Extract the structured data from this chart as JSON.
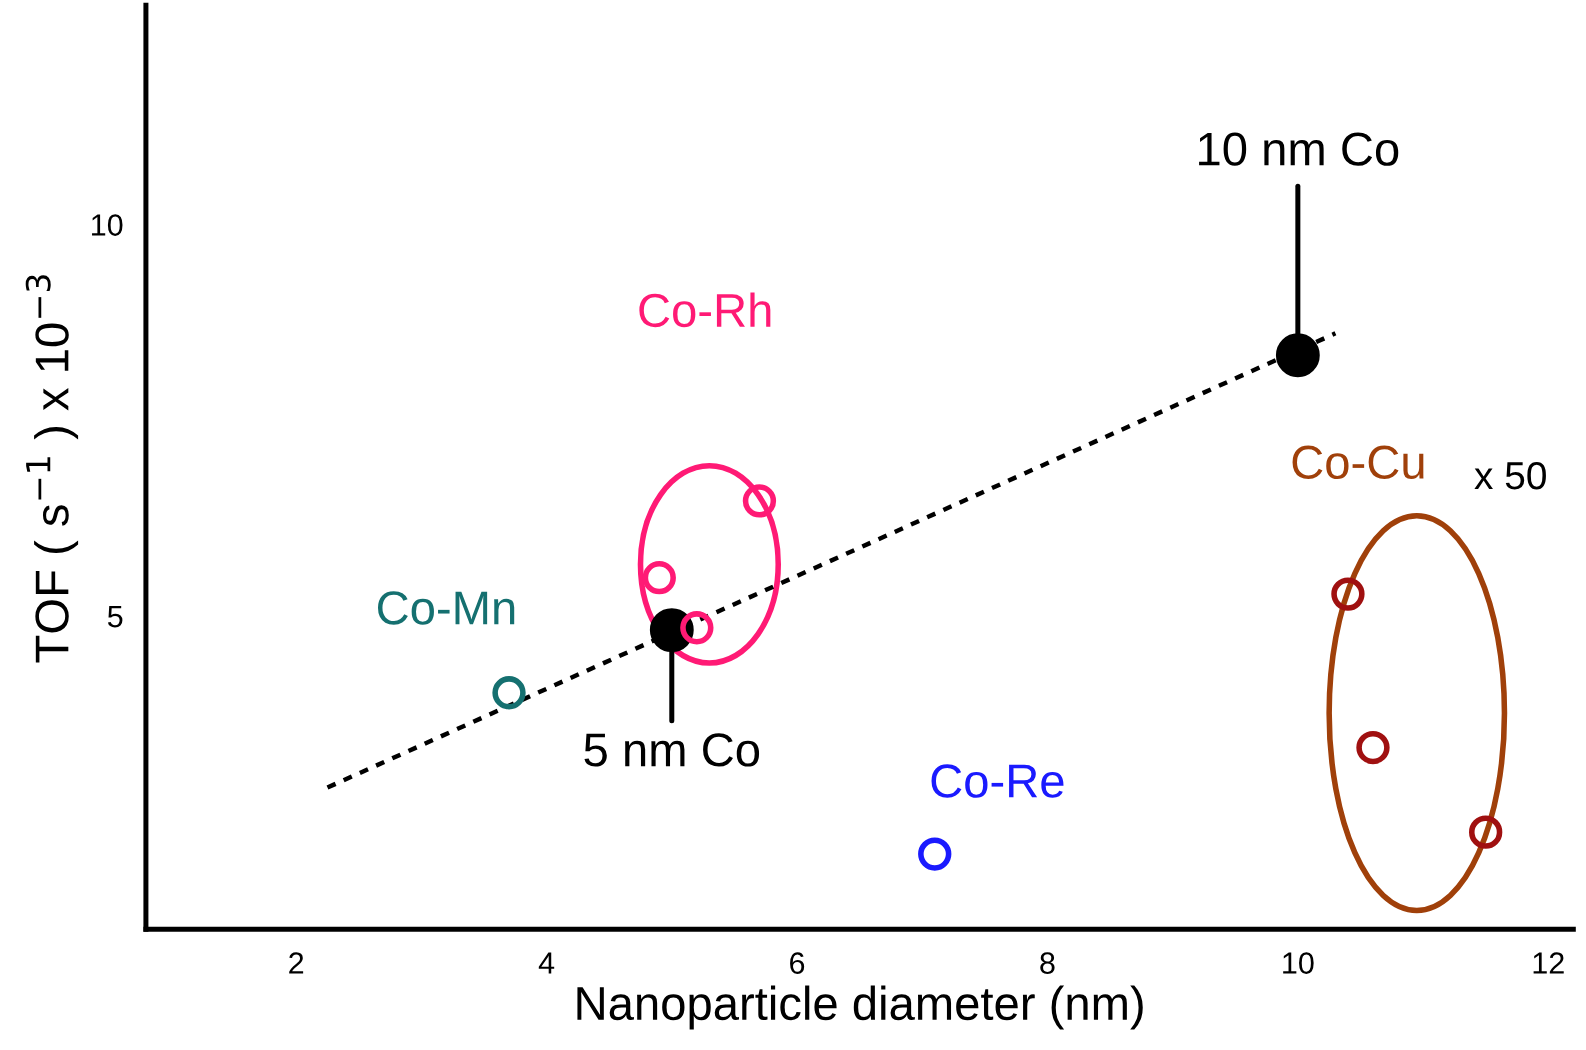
{
  "chart_data": {
    "type": "scatter",
    "xlabel": "Nanoparticle diameter (nm)",
    "ylabel": "TOF ( s$^{−1}$ ) x 10$^{−3}$",
    "xlim": [
      0.8,
      12.2
    ],
    "xticks": [
      2,
      4,
      6,
      8,
      10,
      12
    ],
    "ylim": [
      1,
      12.8
    ],
    "yticks": [
      5,
      10
    ],
    "grid": false,
    "legend": false,
    "marker": "circle",
    "series": [
      {
        "type": "line",
        "color": "#000000",
        "x": [
          2.25,
          10.3
        ],
        "values": [
          2.81,
          8.61
        ],
        "line_style": "dotted",
        "marker": "none"
      },
      {
        "color": "#000000",
        "x": [
          5,
          10
        ],
        "values": [
          4.82,
          8.33
        ]
      },
      {
        "name": "Co-Rh",
        "color": "#ff1a75",
        "x": [
          4.9,
          5.2,
          5.7
        ],
        "values": [
          5.49,
          4.85,
          6.47
        ]
      },
      {
        "name": "Co-Mn",
        "color": "#157070",
        "x": [
          3.7
        ],
        "values": [
          4.02
        ]
      },
      {
        "name": "Co-Re",
        "color": "#1a1aff",
        "x": [
          7.1
        ],
        "values": [
          1.96
        ]
      },
      {
        "name": "Co-Cu",
        "color": "#a01010",
        "x": [
          10.4,
          10.6,
          11.5
        ],
        "values": [
          5.28,
          3.32,
          2.24
        ]
      }
    ],
    "annotations": [
      {
        "text": "10 nm Co",
        "x": 10,
        "y": 8.33
      },
      {
        "text": "5 nm Co",
        "x": 5,
        "y": 4.82
      },
      "x 50"
    ]
  }
}
